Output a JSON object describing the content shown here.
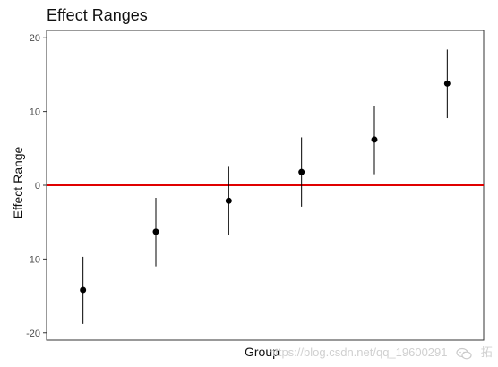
{
  "chart_data": {
    "type": "scatter",
    "title": "Effect Ranges",
    "xlabel": "Group",
    "ylabel": "Effect Range",
    "ylim": [
      -21,
      21
    ],
    "y_ticks": [
      20,
      10,
      0,
      -10,
      -20
    ],
    "x_ticks": [],
    "grid": false,
    "legend": "none",
    "reference_line": {
      "y": 0,
      "color": "#e00000"
    },
    "points": [
      {
        "group": 1,
        "value": -14.2,
        "lower": -18.8,
        "upper": -9.7
      },
      {
        "group": 2,
        "value": -6.3,
        "lower": -11.0,
        "upper": -1.7
      },
      {
        "group": 3,
        "value": -2.1,
        "lower": -6.8,
        "upper": 2.5
      },
      {
        "group": 4,
        "value": 1.8,
        "lower": -2.9,
        "upper": 6.5
      },
      {
        "group": 5,
        "value": 6.2,
        "lower": 1.5,
        "upper": 10.8
      },
      {
        "group": 6,
        "value": 13.8,
        "lower": 9.1,
        "upper": 18.4
      }
    ],
    "colors": {
      "points": "#000000",
      "ranges": "#000000",
      "axis": "#333333",
      "reference": "#e00000"
    }
  },
  "watermark": {
    "url_text": "https://blog.csdn.net/qq_19600291",
    "brand_text": "拓端数据部落",
    "icon": "wechat-icon"
  }
}
